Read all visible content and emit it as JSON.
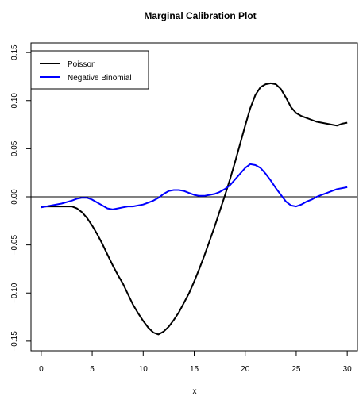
{
  "chart_data": {
    "type": "line",
    "title": "Marginal Calibration Plot",
    "xlabel": "x",
    "ylabel": "",
    "xlim": [
      -1,
      31
    ],
    "ylim": [
      -0.16,
      0.16
    ],
    "x_ticks": [
      0,
      5,
      10,
      15,
      20,
      25,
      30
    ],
    "y_ticks": [
      -0.15,
      -0.1,
      -0.05,
      0.0,
      0.05,
      0.1,
      0.15
    ],
    "x_tick_labels": [
      "0",
      "5",
      "10",
      "15",
      "20",
      "25",
      "30"
    ],
    "y_tick_labels": [
      "−0.15",
      "−0.10",
      "−0.05",
      "0.00",
      "0.05",
      "0.10",
      "0.15"
    ],
    "reference_line": 0,
    "legend_position": "top-left",
    "series": [
      {
        "name": "Poisson",
        "color": "#000000",
        "x": [
          0,
          1,
          2,
          3,
          3.5,
          4,
          4.5,
          5,
          5.5,
          6,
          6.5,
          7,
          7.5,
          8,
          8.5,
          9,
          9.5,
          10,
          10.5,
          11,
          11.5,
          12,
          12.5,
          13,
          13.5,
          14,
          14.5,
          15,
          15.5,
          16,
          16.5,
          17,
          17.5,
          18,
          18.5,
          19,
          19.5,
          20,
          20.5,
          21,
          21.5,
          22,
          22.5,
          23,
          23.5,
          24,
          24.5,
          25,
          25.5,
          26,
          26.5,
          27,
          27.5,
          28,
          28.5,
          29,
          29.5,
          30
        ],
        "values": [
          -0.01,
          -0.01,
          -0.01,
          -0.01,
          -0.012,
          -0.016,
          -0.022,
          -0.03,
          -0.039,
          -0.049,
          -0.06,
          -0.071,
          -0.081,
          -0.09,
          -0.101,
          -0.112,
          -0.121,
          -0.129,
          -0.136,
          -0.141,
          -0.143,
          -0.14,
          -0.135,
          -0.128,
          -0.12,
          -0.11,
          -0.1,
          -0.088,
          -0.075,
          -0.061,
          -0.046,
          -0.031,
          -0.015,
          0.001,
          0.018,
          0.036,
          0.055,
          0.074,
          0.092,
          0.106,
          0.114,
          0.117,
          0.118,
          0.117,
          0.112,
          0.103,
          0.093,
          0.087,
          0.084,
          0.082,
          0.08,
          0.078,
          0.077,
          0.076,
          0.075,
          0.074,
          0.076,
          0.077
        ],
        "line_width": 2
      },
      {
        "name": "Negative Binomial",
        "color": "#0000ff",
        "x": [
          0,
          1,
          2,
          3,
          3.5,
          4,
          4.5,
          5,
          5.5,
          6,
          6.5,
          7,
          7.5,
          8,
          8.5,
          9,
          9.5,
          10,
          10.5,
          11,
          11.5,
          12,
          12.5,
          13,
          13.5,
          14,
          14.5,
          15,
          15.5,
          16,
          16.5,
          17,
          17.5,
          18,
          18.5,
          19,
          19.5,
          20,
          20.5,
          21,
          21.5,
          22,
          22.5,
          23,
          23.5,
          24,
          24.5,
          25,
          25.5,
          26,
          26.5,
          27,
          27.5,
          28,
          28.5,
          29,
          29.5,
          30
        ],
        "values": [
          -0.011,
          -0.009,
          -0.007,
          -0.004,
          -0.002,
          -0.001,
          -0.001,
          -0.003,
          -0.006,
          -0.009,
          -0.012,
          -0.013,
          -0.012,
          -0.011,
          -0.01,
          -0.01,
          -0.009,
          -0.008,
          -0.006,
          -0.004,
          -0.001,
          0.003,
          0.006,
          0.007,
          0.007,
          0.006,
          0.004,
          0.002,
          0.001,
          0.001,
          0.002,
          0.003,
          0.005,
          0.008,
          0.012,
          0.018,
          0.024,
          0.03,
          0.034,
          0.033,
          0.03,
          0.024,
          0.017,
          0.009,
          0.002,
          -0.005,
          -0.009,
          -0.01,
          -0.008,
          -0.005,
          -0.003,
          0.0,
          0.002,
          0.004,
          0.006,
          0.008,
          0.009,
          0.01
        ],
        "line_width": 2
      }
    ]
  }
}
